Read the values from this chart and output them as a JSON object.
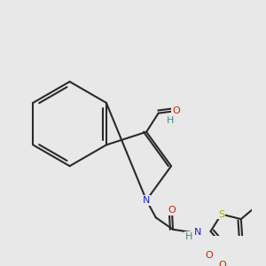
{
  "bg_color": "#e8e8e8",
  "bond_color": "#2a2a2a",
  "lw": 1.5,
  "atom_colors": {
    "C": "#2a2a2a",
    "N": "#2222cc",
    "O": "#cc2200",
    "S": "#aaaa00",
    "H": "#448888"
  }
}
